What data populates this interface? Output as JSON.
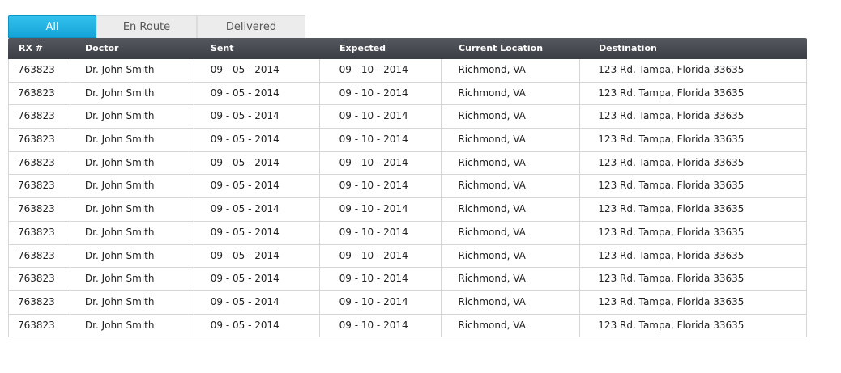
{
  "tabs": [
    {
      "label": "All",
      "active": true
    },
    {
      "label": "En Route",
      "active": false
    },
    {
      "label": "Delivered",
      "active": false
    }
  ],
  "table": {
    "columns": [
      "RX #",
      "Doctor",
      "Sent",
      "Expected",
      "Current Location",
      "Destination"
    ],
    "rows": [
      [
        "763823",
        "Dr. John Smith",
        "09 - 05 - 2014",
        "09 - 10 - 2014",
        "Richmond, VA",
        "123 Rd. Tampa, Florida 33635"
      ],
      [
        "763823",
        "Dr. John Smith",
        "09 - 05 - 2014",
        "09 - 10 - 2014",
        "Richmond, VA",
        "123 Rd. Tampa, Florida 33635"
      ],
      [
        "763823",
        "Dr. John Smith",
        "09 - 05 - 2014",
        "09 - 10 - 2014",
        "Richmond, VA",
        "123 Rd. Tampa, Florida 33635"
      ],
      [
        "763823",
        "Dr. John Smith",
        "09 - 05 - 2014",
        "09 - 10 - 2014",
        "Richmond, VA",
        "123 Rd. Tampa, Florida 33635"
      ],
      [
        "763823",
        "Dr. John Smith",
        "09 - 05 - 2014",
        "09 - 10 - 2014",
        "Richmond, VA",
        "123 Rd. Tampa, Florida 33635"
      ],
      [
        "763823",
        "Dr. John Smith",
        "09 - 05 - 2014",
        "09 - 10 - 2014",
        "Richmond, VA",
        "123 Rd. Tampa, Florida 33635"
      ],
      [
        "763823",
        "Dr. John Smith",
        "09 - 05 - 2014",
        "09 - 10 - 2014",
        "Richmond, VA",
        "123 Rd. Tampa, Florida 33635"
      ],
      [
        "763823",
        "Dr. John Smith",
        "09 - 05 - 2014",
        "09 - 10 - 2014",
        "Richmond, VA",
        "123 Rd. Tampa, Florida 33635"
      ],
      [
        "763823",
        "Dr. John Smith",
        "09 - 05 - 2014",
        "09 - 10 - 2014",
        "Richmond, VA",
        "123 Rd. Tampa, Florida 33635"
      ],
      [
        "763823",
        "Dr. John Smith",
        "09 - 05 - 2014",
        "09 - 10 - 2014",
        "Richmond, VA",
        "123 Rd. Tampa, Florida 33635"
      ],
      [
        "763823",
        "Dr. John Smith",
        "09 - 05 - 2014",
        "09 - 10 - 2014",
        "Richmond, VA",
        "123 Rd. Tampa, Florida 33635"
      ],
      [
        "763823",
        "Dr. John Smith",
        "09 - 05 - 2014",
        "09 - 10 - 2014",
        "Richmond, VA",
        "123 Rd. Tampa, Florida 33635"
      ]
    ]
  },
  "colors": {
    "tab_active": "#1ab0e2",
    "header_bg": "#45484e",
    "border": "#d6d6d6"
  }
}
